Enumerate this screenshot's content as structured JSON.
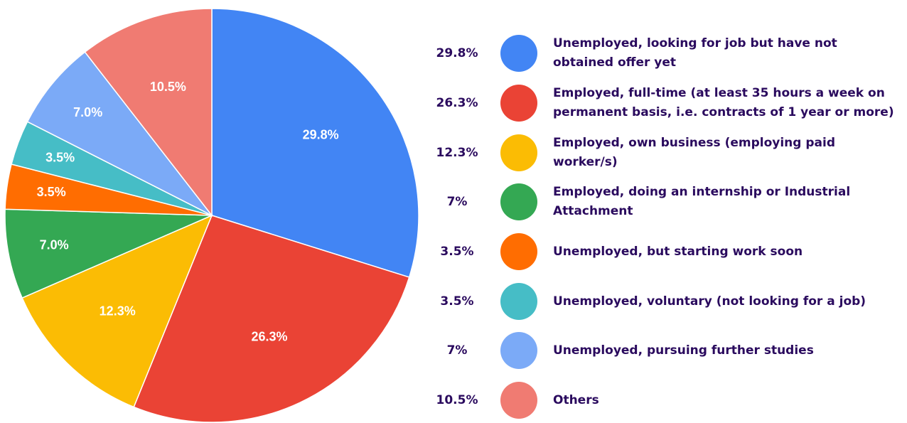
{
  "chart_data": {
    "type": "pie",
    "title": "",
    "slices": [
      {
        "label": "Unemployed, looking for job but have not obtained offer yet",
        "value": 29.8,
        "slice_label": "29.8%",
        "legend_value": "29.8%",
        "color": "#4285F4"
      },
      {
        "label": "Employed, full-time (at least 35 hours a week on permanent basis, i.e. contracts of 1 year or more)",
        "value": 26.3,
        "slice_label": "26.3%",
        "legend_value": "26.3%",
        "color": "#EA4335"
      },
      {
        "label": "Employed, own business (employing paid worker/s)",
        "value": 12.3,
        "slice_label": "12.3%",
        "legend_value": "12.3%",
        "color": "#FBBC04"
      },
      {
        "label": "Employed, doing an internship or Industrial Attachment",
        "value": 7.0,
        "slice_label": "7.0%",
        "legend_value": "7%",
        "color": "#34A853"
      },
      {
        "label": "Unemployed, but starting work soon",
        "value": 3.5,
        "slice_label": "3.5%",
        "legend_value": "3.5%",
        "color": "#FF6D01"
      },
      {
        "label": "Unemployed, voluntary (not looking for a job)",
        "value": 3.5,
        "slice_label": "3.5%",
        "legend_value": "3.5%",
        "color": "#46BDC6"
      },
      {
        "label": "Unemployed, pursuing further studies",
        "value": 7.0,
        "slice_label": "7.0%",
        "legend_value": "7%",
        "color": "#7BAAF7"
      },
      {
        "label": "Others",
        "value": 10.5,
        "slice_label": "10.5%",
        "legend_value": "10.5%",
        "color": "#F07B72"
      }
    ],
    "legend_placement": "right"
  }
}
